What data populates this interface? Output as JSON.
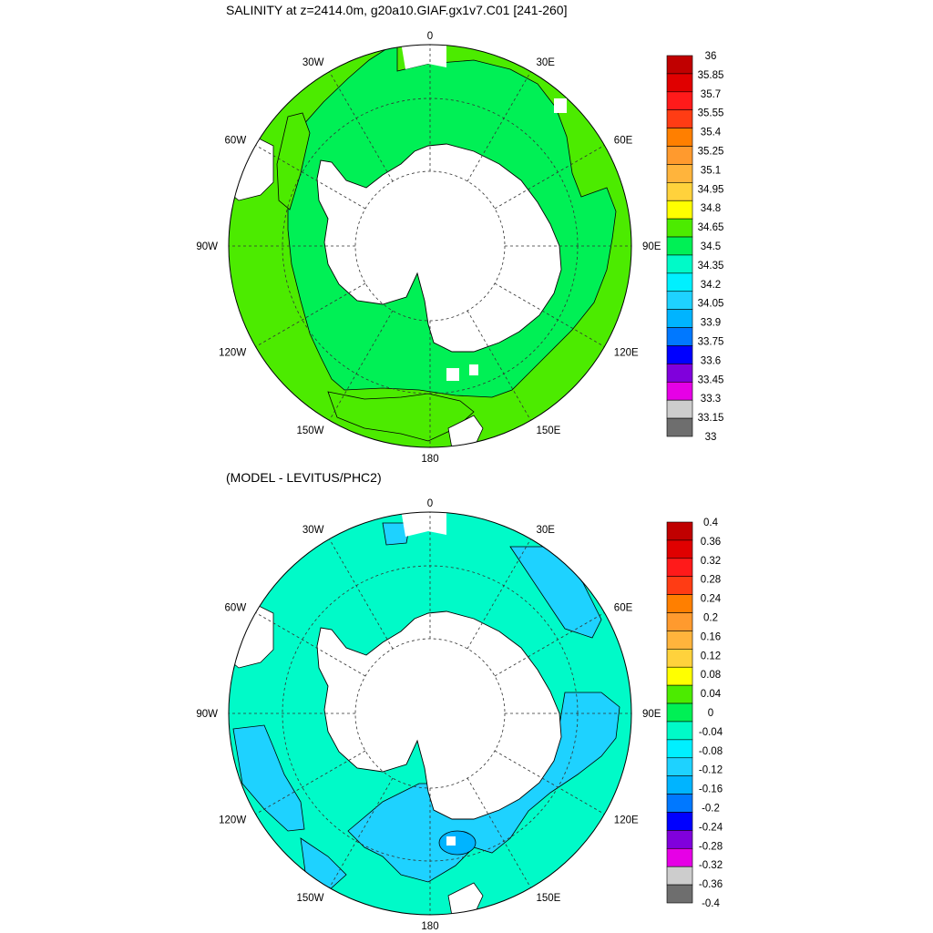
{
  "chart_data": [
    {
      "type": "heatmap",
      "projection": "south-polar-stereographic",
      "title": "SALINITY at z=2414.0m, g20a10.GIAF.gx1v7.C01 [241-260]",
      "longitude_labels": [
        "0",
        "30E",
        "60E",
        "90E",
        "120E",
        "150E",
        "180",
        "150W",
        "120W",
        "90W",
        "60W",
        "30W"
      ],
      "colorbar": {
        "labels": [
          "36",
          "35.85",
          "35.7",
          "35.55",
          "35.4",
          "35.25",
          "35.1",
          "34.95",
          "34.8",
          "34.65",
          "34.5",
          "34.35",
          "34.2",
          "34.05",
          "33.9",
          "33.75",
          "33.6",
          "33.45",
          "33.3",
          "33.15",
          "33"
        ],
        "colors": [
          "#c00000",
          "#e00000",
          "#ff1a1a",
          "#ff3c14",
          "#ff7f00",
          "#ff9a2e",
          "#ffb43c",
          "#ffd23c",
          "#ffff00",
          "#4ceb00",
          "#00f055",
          "#00fac8",
          "#00f0ff",
          "#1ed2ff",
          "#00b4ff",
          "#0078ff",
          "#0000ff",
          "#8000dc",
          "#e600e6",
          "#cdcdcd",
          "#6e6e6e"
        ]
      },
      "dominant_values": {
        "outer_ring": "34.65-34.8",
        "inner_ring": "34.5-34.65"
      },
      "land_color": "#ffffff"
    },
    {
      "type": "heatmap",
      "projection": "south-polar-stereographic",
      "title": "(MODEL - LEVITUS/PHC2)",
      "longitude_labels": [
        "0",
        "30E",
        "60E",
        "90E",
        "120E",
        "150E",
        "180",
        "150W",
        "120W",
        "90W",
        "60W",
        "30W"
      ],
      "colorbar": {
        "labels": [
          "0.4",
          "0.36",
          "0.32",
          "0.28",
          "0.24",
          "0.2",
          "0.16",
          "0.12",
          "0.08",
          "0.04",
          "0",
          "-0.04",
          "-0.08",
          "-0.12",
          "-0.16",
          "-0.2",
          "-0.24",
          "-0.28",
          "-0.32",
          "-0.36",
          "-0.4"
        ],
        "colors": [
          "#c00000",
          "#e00000",
          "#ff1a1a",
          "#ff3c14",
          "#ff7f00",
          "#ff9a2e",
          "#ffb43c",
          "#ffd23c",
          "#ffff00",
          "#4ceb00",
          "#00f055",
          "#00fac8",
          "#00f0ff",
          "#1ed2ff",
          "#00b4ff",
          "#0078ff",
          "#0000ff",
          "#8000dc",
          "#e600e6",
          "#cdcdcd",
          "#6e6e6e"
        ]
      },
      "dominant_values": {
        "background": "-0.08 to -0.04",
        "patches": "-0.12 to -0.08"
      },
      "land_color": "#ffffff"
    }
  ]
}
